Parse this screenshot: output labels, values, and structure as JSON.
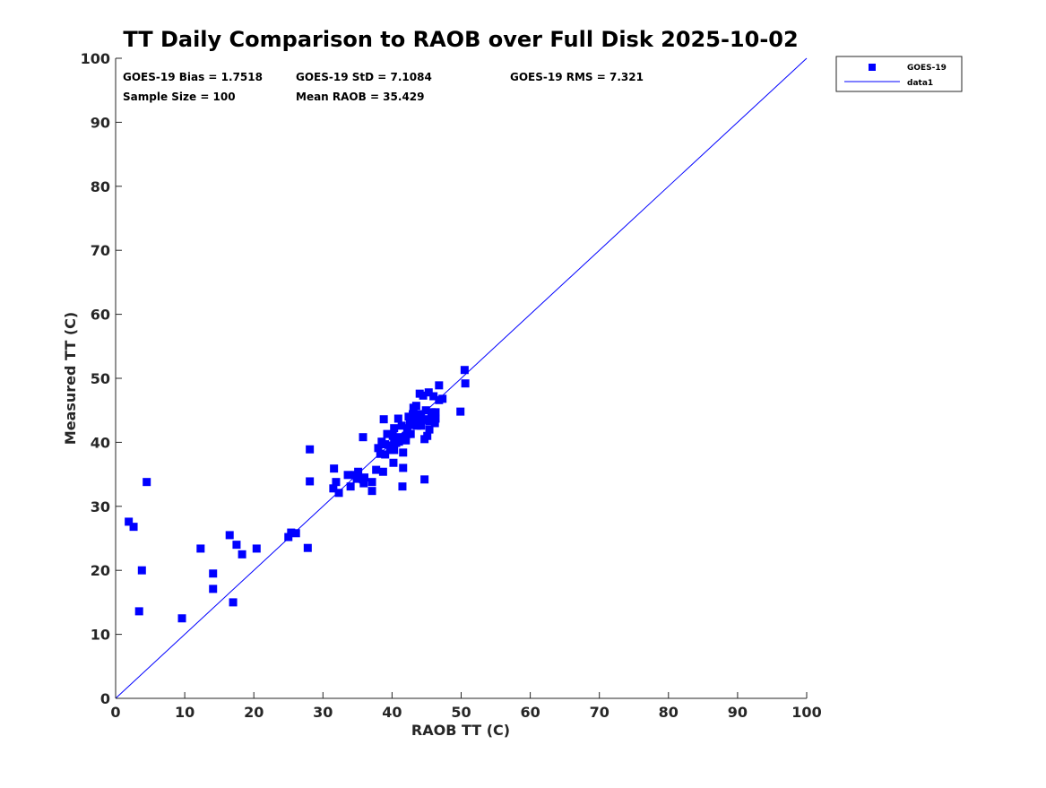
{
  "chart_data": {
    "type": "scatter",
    "title": "TT Daily Comparison to RAOB over Full Disk 2025-10-02",
    "xlabel": "RAOB TT (C)",
    "ylabel": "Measured TT (C)",
    "xlim": [
      0,
      100
    ],
    "ylim": [
      0,
      100
    ],
    "xticks": [
      "0",
      "10",
      "20",
      "30",
      "40",
      "50",
      "60",
      "70",
      "80",
      "90",
      "100"
    ],
    "yticks": [
      "0",
      "10",
      "20",
      "30",
      "40",
      "50",
      "60",
      "70",
      "80",
      "90",
      "100"
    ],
    "grid": false,
    "legend_position": "outside-top-right",
    "legend": [
      "GOES-19",
      "data1"
    ],
    "colors": {
      "points": "#0000ff",
      "line": "#0000ff"
    },
    "stats": {
      "bias": "GOES-19 Bias = 1.7518",
      "std": "GOES-19 StD = 7.1084",
      "rms": "GOES-19 RMS = 7.321",
      "sample": "Sample Size = 100",
      "mean": "Mean RAOB = 35.429"
    },
    "series": [
      {
        "name": "GOES-19",
        "kind": "scatter",
        "points": [
          [
            4.5,
            33.8
          ],
          [
            1.9,
            27.6
          ],
          [
            2.6,
            26.8
          ],
          [
            3.8,
            20.0
          ],
          [
            3.4,
            13.6
          ],
          [
            9.6,
            12.5
          ],
          [
            12.3,
            23.4
          ],
          [
            14.1,
            19.5
          ],
          [
            14.1,
            17.1
          ],
          [
            16.5,
            25.5
          ],
          [
            17.5,
            24.0
          ],
          [
            18.3,
            22.5
          ],
          [
            17.0,
            15.0
          ],
          [
            20.4,
            23.4
          ],
          [
            25.0,
            25.2
          ],
          [
            25.4,
            25.9
          ],
          [
            26.1,
            25.8
          ],
          [
            27.8,
            23.5
          ],
          [
            28.1,
            33.9
          ],
          [
            28.1,
            38.9
          ],
          [
            31.6,
            35.9
          ],
          [
            31.5,
            32.8
          ],
          [
            31.9,
            33.8
          ],
          [
            32.3,
            32.1
          ],
          [
            33.6,
            34.9
          ],
          [
            34.0,
            33.1
          ],
          [
            34.6,
            34.9
          ],
          [
            34.9,
            34.3
          ],
          [
            35.1,
            35.4
          ],
          [
            35.8,
            34.2
          ],
          [
            35.9,
            33.6
          ],
          [
            35.8,
            40.8
          ],
          [
            37.1,
            33.8
          ],
          [
            37.1,
            32.4
          ],
          [
            37.7,
            35.7
          ],
          [
            38.0,
            39.1
          ],
          [
            38.3,
            38.2
          ],
          [
            38.5,
            40.1
          ],
          [
            38.8,
            43.6
          ],
          [
            38.7,
            35.4
          ],
          [
            39.0,
            38.1
          ],
          [
            39.3,
            41.3
          ],
          [
            39.7,
            38.8
          ],
          [
            40.1,
            41.0
          ],
          [
            40.3,
            40.5
          ],
          [
            40.3,
            38.8
          ],
          [
            40.2,
            36.8
          ],
          [
            40.6,
            39.9
          ],
          [
            40.9,
            43.7
          ],
          [
            41.1,
            40.8
          ],
          [
            41.4,
            42.6
          ],
          [
            41.6,
            38.4
          ],
          [
            41.6,
            36.0
          ],
          [
            41.5,
            33.1
          ],
          [
            42.0,
            40.3
          ],
          [
            42.2,
            42.2
          ],
          [
            42.3,
            41.3
          ],
          [
            42.6,
            43.4
          ],
          [
            42.8,
            42.7
          ],
          [
            43.0,
            44.4
          ],
          [
            43.1,
            45.4
          ],
          [
            43.2,
            43.1
          ],
          [
            43.6,
            43.8
          ],
          [
            43.5,
            45.7
          ],
          [
            43.8,
            44.4
          ],
          [
            44.0,
            47.6
          ],
          [
            44.2,
            42.6
          ],
          [
            44.5,
            47.3
          ],
          [
            44.7,
            40.5
          ],
          [
            44.7,
            34.2
          ],
          [
            44.9,
            45.0
          ],
          [
            45.0,
            43.6
          ],
          [
            45.1,
            41.0
          ],
          [
            45.3,
            47.8
          ],
          [
            45.4,
            43.3
          ],
          [
            45.7,
            44.7
          ],
          [
            46.0,
            47.2
          ],
          [
            45.9,
            44.0
          ],
          [
            46.2,
            43.0
          ],
          [
            46.3,
            43.7
          ],
          [
            46.3,
            44.7
          ],
          [
            46.8,
            48.9
          ],
          [
            46.8,
            46.6
          ],
          [
            47.3,
            46.8
          ],
          [
            49.9,
            44.8
          ],
          [
            50.5,
            51.3
          ],
          [
            50.6,
            49.2
          ],
          [
            42.0,
            41.0
          ],
          [
            40.3,
            42.2
          ],
          [
            39.9,
            39.5
          ],
          [
            44.2,
            44.1
          ],
          [
            45.4,
            42.0
          ],
          [
            43.6,
            42.6
          ],
          [
            42.7,
            41.3
          ],
          [
            41.0,
            40.1
          ],
          [
            43.0,
            43.0
          ],
          [
            44.5,
            43.5
          ],
          [
            42.4,
            44.0
          ],
          [
            39.0,
            39.7
          ],
          [
            36.0,
            34.5
          ]
        ]
      },
      {
        "name": "data1",
        "kind": "line",
        "points": [
          [
            0,
            0
          ],
          [
            100,
            100
          ]
        ]
      }
    ]
  }
}
